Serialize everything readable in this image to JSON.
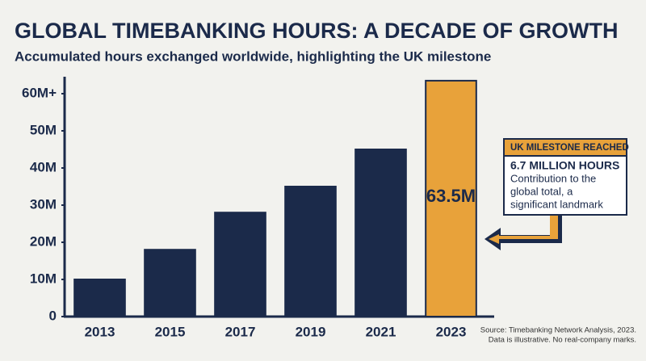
{
  "chart_data": {
    "type": "bar",
    "title": "GLOBAL TIMEBANKING HOURS: A DECADE OF GROWTH",
    "subtitle": "Accumulated hours exchanged worldwide, highlighting the UK milestone",
    "categories": [
      "2013",
      "2015",
      "2017",
      "2019",
      "2021",
      "2023"
    ],
    "values": [
      10000000,
      18000000,
      28000000,
      35000000,
      45000000,
      63500000
    ],
    "value_labels": [
      null,
      null,
      null,
      null,
      null,
      "63.5M"
    ],
    "colors": [
      "#1b2a4a",
      "#1b2a4a",
      "#1b2a4a",
      "#1b2a4a",
      "#1b2a4a",
      "#e8a23a"
    ],
    "ylim": [
      0,
      65000000
    ],
    "yticks": [
      0,
      {
        "value": 10000000,
        "label": "10M"
      },
      {
        "value": 20000000,
        "label": "20M"
      },
      {
        "value": 30000000,
        "label": "30M"
      },
      {
        "value": 40000000,
        "label": "40M"
      },
      {
        "value": 50000000,
        "label": "50M"
      },
      {
        "value": 60000000,
        "label": "60M+"
      }
    ],
    "grid": false,
    "annotation": {
      "header": "UK MILESTONE REACHED",
      "headline": "6.7 MILLION HOURS",
      "text_lines": [
        "Contribution to the",
        "global total, a",
        "significant landmark"
      ]
    },
    "source_lines": [
      "Source: Timebanking Network Analysis, 2023.",
      "Data is illustrative. No real-company marks."
    ]
  }
}
